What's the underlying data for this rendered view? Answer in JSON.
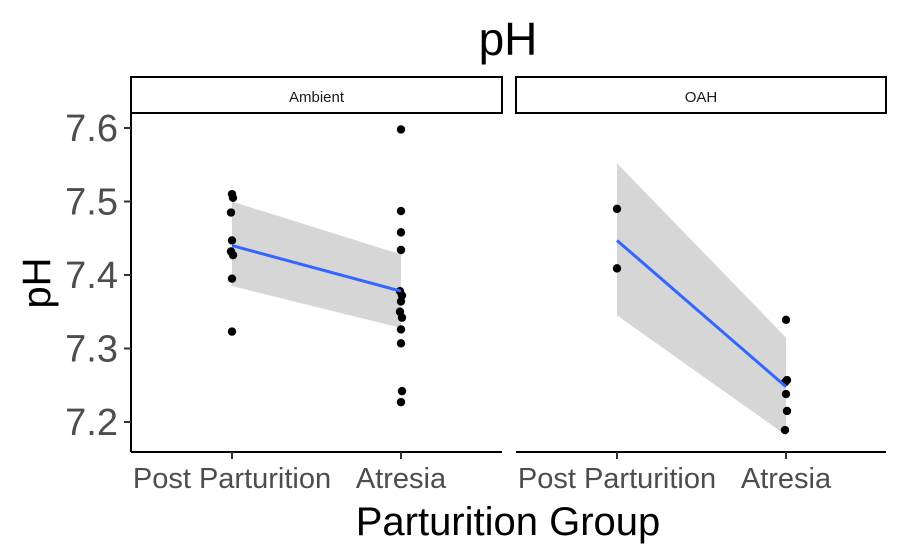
{
  "chart_data": {
    "type": "scatter",
    "title": "pH",
    "xlabel": "Parturition Group",
    "ylabel": "pH",
    "categories": [
      "Post Parturition",
      "Atresia"
    ],
    "y_ticks": [
      "7.2",
      "7.3",
      "7.4",
      "7.5",
      "7.6"
    ],
    "ylim": [
      7.16,
      7.62
    ],
    "grid": false,
    "legend": "none",
    "colors": {
      "point": "#000000",
      "fit_line": "#3366FF",
      "ribbon": "#d6d6d6",
      "axis": "#000000"
    },
    "panels": [
      {
        "strip_label": "Ambient",
        "points": [
          {
            "x": "Post Parturition",
            "y": 7.51
          },
          {
            "x": "Post Parturition",
            "y": 7.505
          },
          {
            "x": "Post Parturition",
            "y": 7.485
          },
          {
            "x": "Post Parturition",
            "y": 7.447
          },
          {
            "x": "Post Parturition",
            "y": 7.432
          },
          {
            "x": "Post Parturition",
            "y": 7.427
          },
          {
            "x": "Post Parturition",
            "y": 7.395
          },
          {
            "x": "Post Parturition",
            "y": 7.323
          },
          {
            "x": "Atresia",
            "y": 7.598
          },
          {
            "x": "Atresia",
            "y": 7.487
          },
          {
            "x": "Atresia",
            "y": 7.458
          },
          {
            "x": "Atresia",
            "y": 7.434
          },
          {
            "x": "Atresia",
            "y": 7.378
          },
          {
            "x": "Atresia",
            "y": 7.372
          },
          {
            "x": "Atresia",
            "y": 7.364
          },
          {
            "x": "Atresia",
            "y": 7.35
          },
          {
            "x": "Atresia",
            "y": 7.342
          },
          {
            "x": "Atresia",
            "y": 7.326
          },
          {
            "x": "Atresia",
            "y": 7.307
          },
          {
            "x": "Atresia",
            "y": 7.242
          },
          {
            "x": "Atresia",
            "y": 7.227
          }
        ],
        "fit": {
          "start": 7.44,
          "end": 7.378
        },
        "ci": {
          "start": [
            7.385,
            7.5
          ],
          "end": [
            7.328,
            7.428
          ]
        }
      },
      {
        "strip_label": "OAH",
        "points": [
          {
            "x": "Post Parturition",
            "y": 7.49
          },
          {
            "x": "Post Parturition",
            "y": 7.409
          },
          {
            "x": "Atresia",
            "y": 7.339
          },
          {
            "x": "Atresia",
            "y": 7.257
          },
          {
            "x": "Atresia",
            "y": 7.254
          },
          {
            "x": "Atresia",
            "y": 7.238
          },
          {
            "x": "Atresia",
            "y": 7.215
          },
          {
            "x": "Atresia",
            "y": 7.189
          }
        ],
        "fit": {
          "start": 7.447,
          "end": 7.248
        },
        "ci": {
          "start": [
            7.345,
            7.552
          ],
          "end": [
            7.182,
            7.315
          ]
        }
      }
    ]
  }
}
